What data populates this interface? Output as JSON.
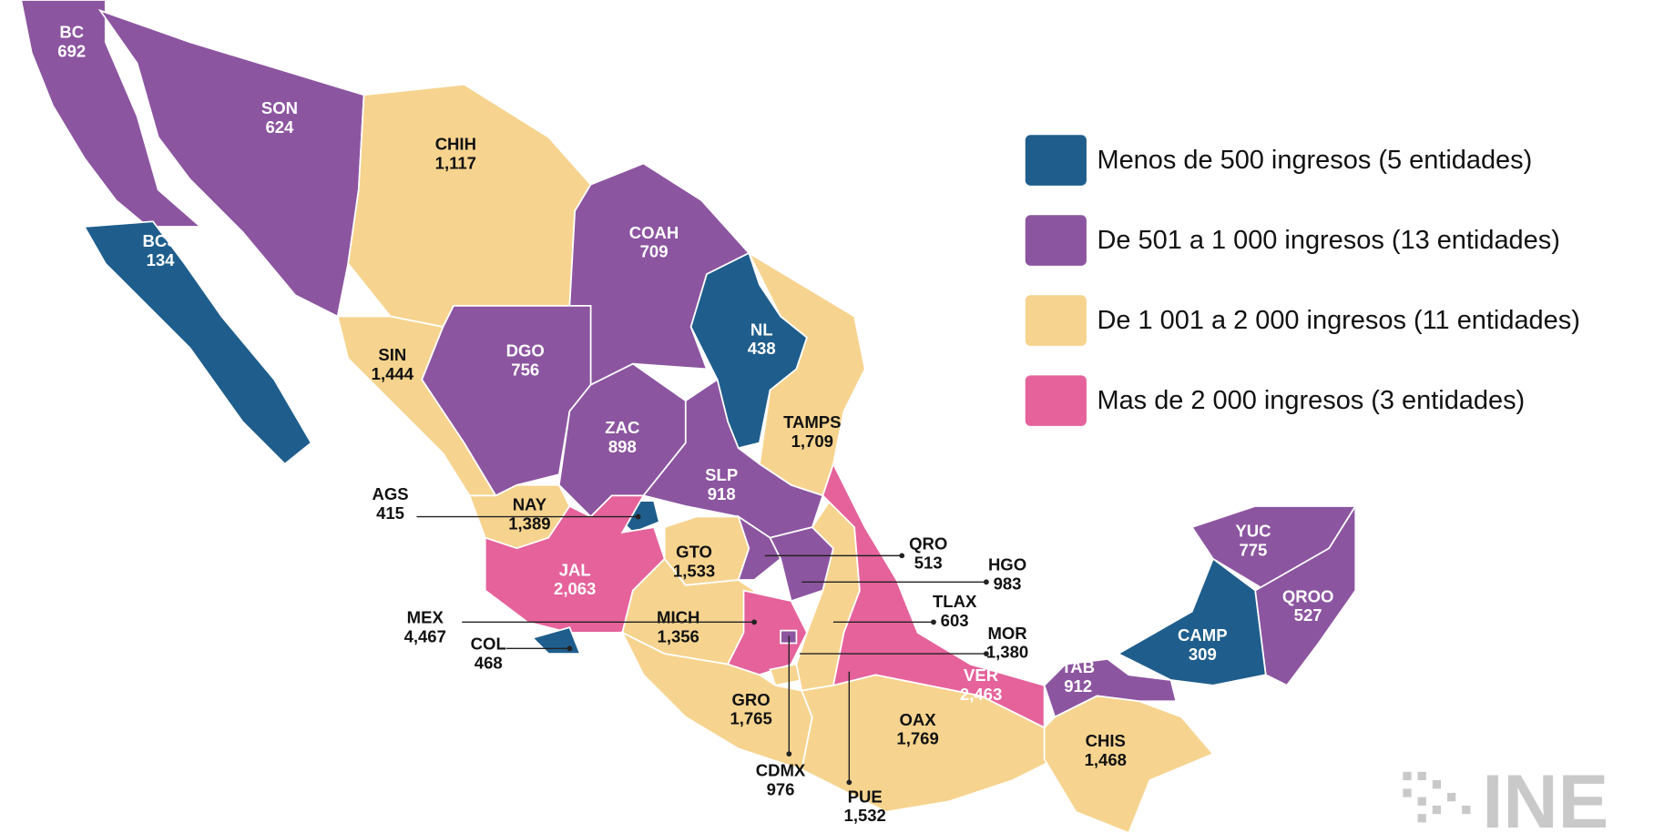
{
  "legend": [
    {
      "label": "Menos de 500 ingresos (5 entidades)",
      "color": "#1f5e8c"
    },
    {
      "label": "De 501 a 1 000 ingresos (13 entidades)",
      "color": "#8c55a0"
    },
    {
      "label": "De 1 001 a 2 000 ingresos (11 entidades)",
      "color": "#f6d48f"
    },
    {
      "label": "Mas de 2 000 ingresos (3 entidades)",
      "color": "#e5629b"
    }
  ],
  "states": [
    {
      "abbr": "BC",
      "value": "692",
      "class": 1
    },
    {
      "abbr": "SON",
      "value": "624",
      "class": 1
    },
    {
      "abbr": "CHIH",
      "value": "1,117",
      "class": 2
    },
    {
      "abbr": "BCS",
      "value": "134",
      "class": 0
    },
    {
      "abbr": "COAH",
      "value": "709",
      "class": 1
    },
    {
      "abbr": "NL",
      "value": "438",
      "class": 0
    },
    {
      "abbr": "TAMPS",
      "value": "1,709",
      "class": 2
    },
    {
      "abbr": "SIN",
      "value": "1,444",
      "class": 2
    },
    {
      "abbr": "DGO",
      "value": "756",
      "class": 1
    },
    {
      "abbr": "ZAC",
      "value": "898",
      "class": 1
    },
    {
      "abbr": "SLP",
      "value": "918",
      "class": 1
    },
    {
      "abbr": "NAY",
      "value": "1,389",
      "class": 2
    },
    {
      "abbr": "AGS",
      "value": "415",
      "class": 0
    },
    {
      "abbr": "JAL",
      "value": "2,063",
      "class": 3
    },
    {
      "abbr": "COL",
      "value": "468",
      "class": 0
    },
    {
      "abbr": "GTO",
      "value": "1,533",
      "class": 2
    },
    {
      "abbr": "QRO",
      "value": "513",
      "class": 1
    },
    {
      "abbr": "HGO",
      "value": "983",
      "class": 1
    },
    {
      "abbr": "MICH",
      "value": "1,356",
      "class": 2
    },
    {
      "abbr": "MEX",
      "value": "4,467",
      "class": 3
    },
    {
      "abbr": "CDMX",
      "value": "976",
      "class": 1
    },
    {
      "abbr": "TLAX",
      "value": "603",
      "class": 1
    },
    {
      "abbr": "MOR",
      "value": "1,380",
      "class": 2
    },
    {
      "abbr": "PUE",
      "value": "1,532",
      "class": 2
    },
    {
      "abbr": "GRO",
      "value": "1,765",
      "class": 2
    },
    {
      "abbr": "OAX",
      "value": "1,769",
      "class": 2
    },
    {
      "abbr": "VER",
      "value": "2,463",
      "class": 3
    },
    {
      "abbr": "TAB",
      "value": "912",
      "class": 1
    },
    {
      "abbr": "CHIS",
      "value": "1,468",
      "class": 2
    },
    {
      "abbr": "CAMP",
      "value": "309",
      "class": 0
    },
    {
      "abbr": "YUC",
      "value": "775",
      "class": 1
    },
    {
      "abbr": "QROO",
      "value": "527",
      "class": 1
    }
  ],
  "logo": "INE"
}
